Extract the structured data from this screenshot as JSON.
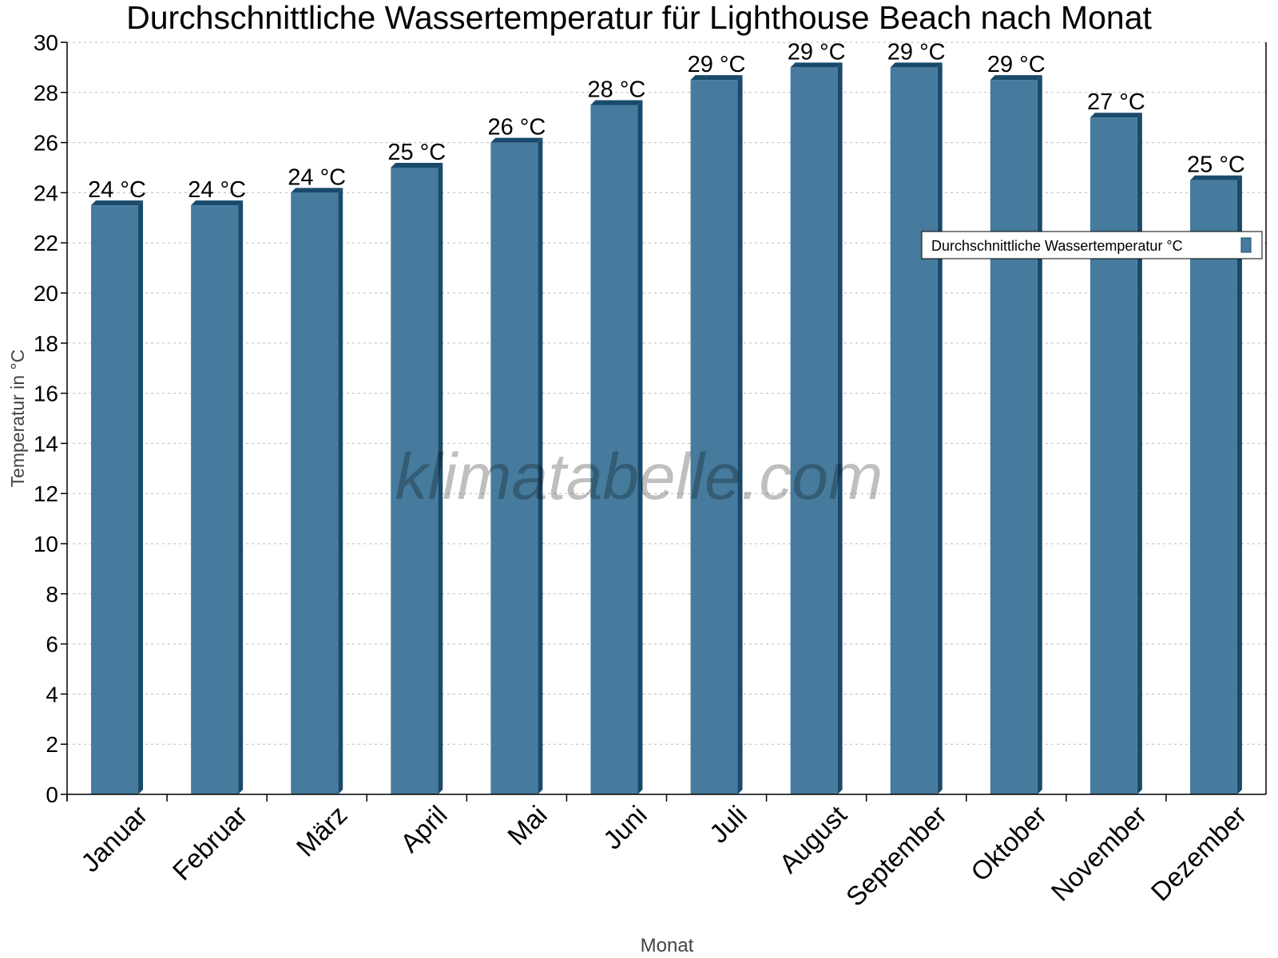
{
  "chart_data": {
    "type": "bar",
    "title": "Durchschnittliche Wassertemperatur für Lighthouse Beach nach Monat",
    "xlabel": "Monat",
    "ylabel": "Temperatur in °C",
    "ylim": [
      0,
      30
    ],
    "yticks": [
      0,
      2,
      4,
      6,
      8,
      10,
      12,
      14,
      16,
      18,
      20,
      22,
      24,
      26,
      28,
      30
    ],
    "grid": true,
    "legend_position": "top-right",
    "categories": [
      "Januar",
      "Februar",
      "März",
      "April",
      "Mai",
      "Juni",
      "Juli",
      "August",
      "September",
      "Oktober",
      "November",
      "Dezember"
    ],
    "series": [
      {
        "name": "Durchschnittliche Wassertemperatur °C",
        "values": [
          23.5,
          23.5,
          24,
          25,
          26,
          27.5,
          28.5,
          29,
          29,
          28.5,
          27,
          24.5
        ],
        "labels": [
          "24 °C",
          "24 °C",
          "24 °C",
          "25 °C",
          "26 °C",
          "28 °C",
          "29 °C",
          "29 °C",
          "29 °C",
          "29 °C",
          "27 °C",
          "25 °C"
        ],
        "color": "#467b9d",
        "side_color": "#1a4a6b"
      }
    ],
    "watermark": "klimatabelle.com"
  }
}
